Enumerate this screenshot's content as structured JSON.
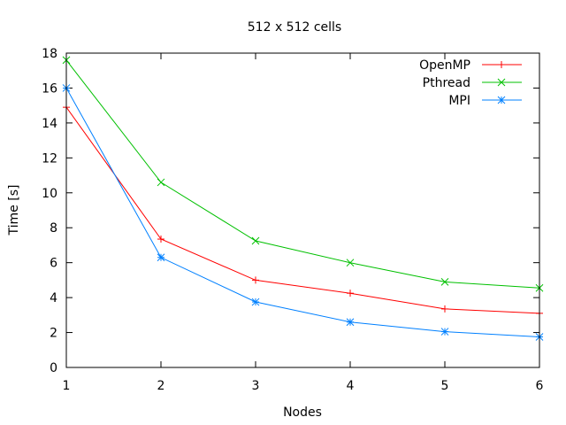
{
  "chart_data": {
    "type": "line",
    "title": "512 x 512 cells",
    "xlabel": "Nodes",
    "ylabel": "Time [s]",
    "x": [
      1,
      2,
      3,
      4,
      5,
      6
    ],
    "xlim": [
      1,
      6
    ],
    "ylim": [
      0,
      18
    ],
    "xticks": [
      "1",
      "2",
      "3",
      "4",
      "5",
      "6"
    ],
    "yticks": [
      "0",
      "2",
      "4",
      "6",
      "8",
      "10",
      "12",
      "14",
      "16",
      "18"
    ],
    "grid": false,
    "legend_position": "top-right",
    "series": [
      {
        "name": "OpenMP",
        "color": "#ff0000",
        "marker": "plus",
        "values": [
          14.9,
          7.35,
          5.0,
          4.25,
          3.35,
          3.1
        ]
      },
      {
        "name": "Pthread",
        "color": "#00c000",
        "marker": "cross",
        "values": [
          17.6,
          10.6,
          7.25,
          6.0,
          4.9,
          4.55
        ]
      },
      {
        "name": "MPI",
        "color": "#0080ff",
        "marker": "star",
        "values": [
          16.0,
          6.3,
          3.75,
          2.6,
          2.05,
          1.75
        ]
      }
    ]
  }
}
